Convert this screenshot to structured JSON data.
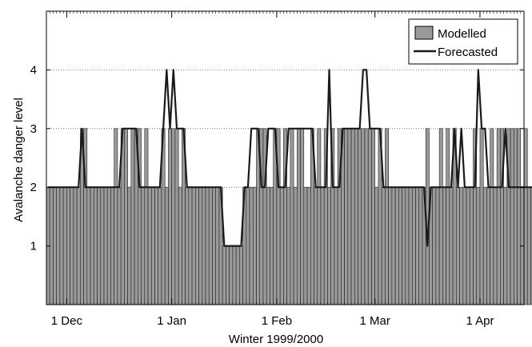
{
  "chart_data": {
    "type": "bar",
    "xlabel": "Winter 1999/2000",
    "ylabel": "Avalanche danger level",
    "x_range": [
      "1999-11-25",
      "2000-04-14"
    ],
    "ylim": [
      0,
      5
    ],
    "x_ticks": [
      {
        "date": "1999-12-01",
        "label": "1 Dec"
      },
      {
        "date": "2000-01-01",
        "label": "1 Jan"
      },
      {
        "date": "2000-02-01",
        "label": "1 Feb"
      },
      {
        "date": "2000-03-01",
        "label": "1 Mar"
      },
      {
        "date": "2000-04-01",
        "label": "1 Apr"
      }
    ],
    "y_ticks": [
      1,
      2,
      3,
      4
    ],
    "grid": "dotted horizontal at y ticks",
    "legend_position": "top-right",
    "series": [
      {
        "name": "Modelled",
        "style": "bar",
        "color": "#9a9a9a",
        "start_date": "1999-11-25",
        "values": [
          2,
          2,
          2,
          2,
          2,
          2,
          2,
          2,
          2,
          2,
          3,
          3,
          2,
          2,
          2,
          2,
          2,
          2,
          2,
          2,
          3,
          2,
          3,
          3,
          2,
          3,
          3,
          3,
          2,
          3,
          2,
          2,
          2,
          2,
          3,
          2,
          3,
          3,
          3,
          2,
          3,
          2,
          2,
          2,
          2,
          2,
          2,
          2,
          2,
          2,
          2,
          2,
          1,
          1,
          1,
          1,
          1,
          1,
          2,
          2,
          2,
          2,
          3,
          3,
          3,
          2,
          2,
          3,
          3,
          2,
          3,
          2,
          3,
          2,
          3,
          3,
          2,
          2,
          3,
          2,
          3,
          2,
          3,
          2,
          3,
          2,
          3,
          3,
          3,
          3,
          3,
          3,
          3,
          3,
          3,
          3,
          3,
          2,
          3,
          2,
          3,
          2,
          2,
          2,
          2,
          2,
          2,
          2,
          2,
          2,
          2,
          2,
          3,
          2,
          2,
          2,
          3,
          2,
          3,
          2,
          3,
          2,
          2,
          2,
          2,
          2,
          3,
          2,
          3,
          2,
          2,
          3,
          2,
          3,
          3,
          2,
          3,
          3,
          3,
          3,
          2,
          3,
          2,
          2,
          2,
          2
        ]
      },
      {
        "name": "Forecasted",
        "style": "line",
        "color": "#1a1a1a",
        "start_date": "1999-11-25",
        "values": [
          2,
          2,
          2,
          2,
          2,
          2,
          2,
          2,
          2,
          2,
          3,
          2,
          2,
          2,
          2,
          2,
          2,
          2,
          2,
          2,
          2,
          2,
          3,
          3,
          3,
          3,
          3,
          2,
          2,
          2,
          2,
          2,
          2,
          2,
          3,
          4,
          3,
          4,
          3,
          3,
          3,
          2,
          2,
          2,
          2,
          2,
          2,
          2,
          2,
          2,
          2,
          2,
          1,
          1,
          1,
          1,
          1,
          1,
          2,
          2,
          3,
          3,
          3,
          2,
          2,
          3,
          3,
          3,
          2,
          2,
          2,
          3,
          3,
          3,
          3,
          3,
          3,
          3,
          3,
          2,
          2,
          2,
          2,
          4,
          2,
          2,
          2,
          3,
          3,
          3,
          3,
          3,
          3,
          4,
          4,
          3,
          3,
          3,
          3,
          2,
          2,
          2,
          2,
          2,
          2,
          2,
          2,
          2,
          2,
          2,
          2,
          2,
          1,
          2,
          2,
          2,
          2,
          2,
          2,
          2,
          3,
          2,
          3,
          2,
          2,
          2,
          2,
          4,
          3,
          3,
          2,
          2,
          2,
          2,
          2,
          3,
          2,
          2,
          2,
          2,
          2,
          2,
          2,
          2,
          2,
          2
        ]
      }
    ]
  }
}
